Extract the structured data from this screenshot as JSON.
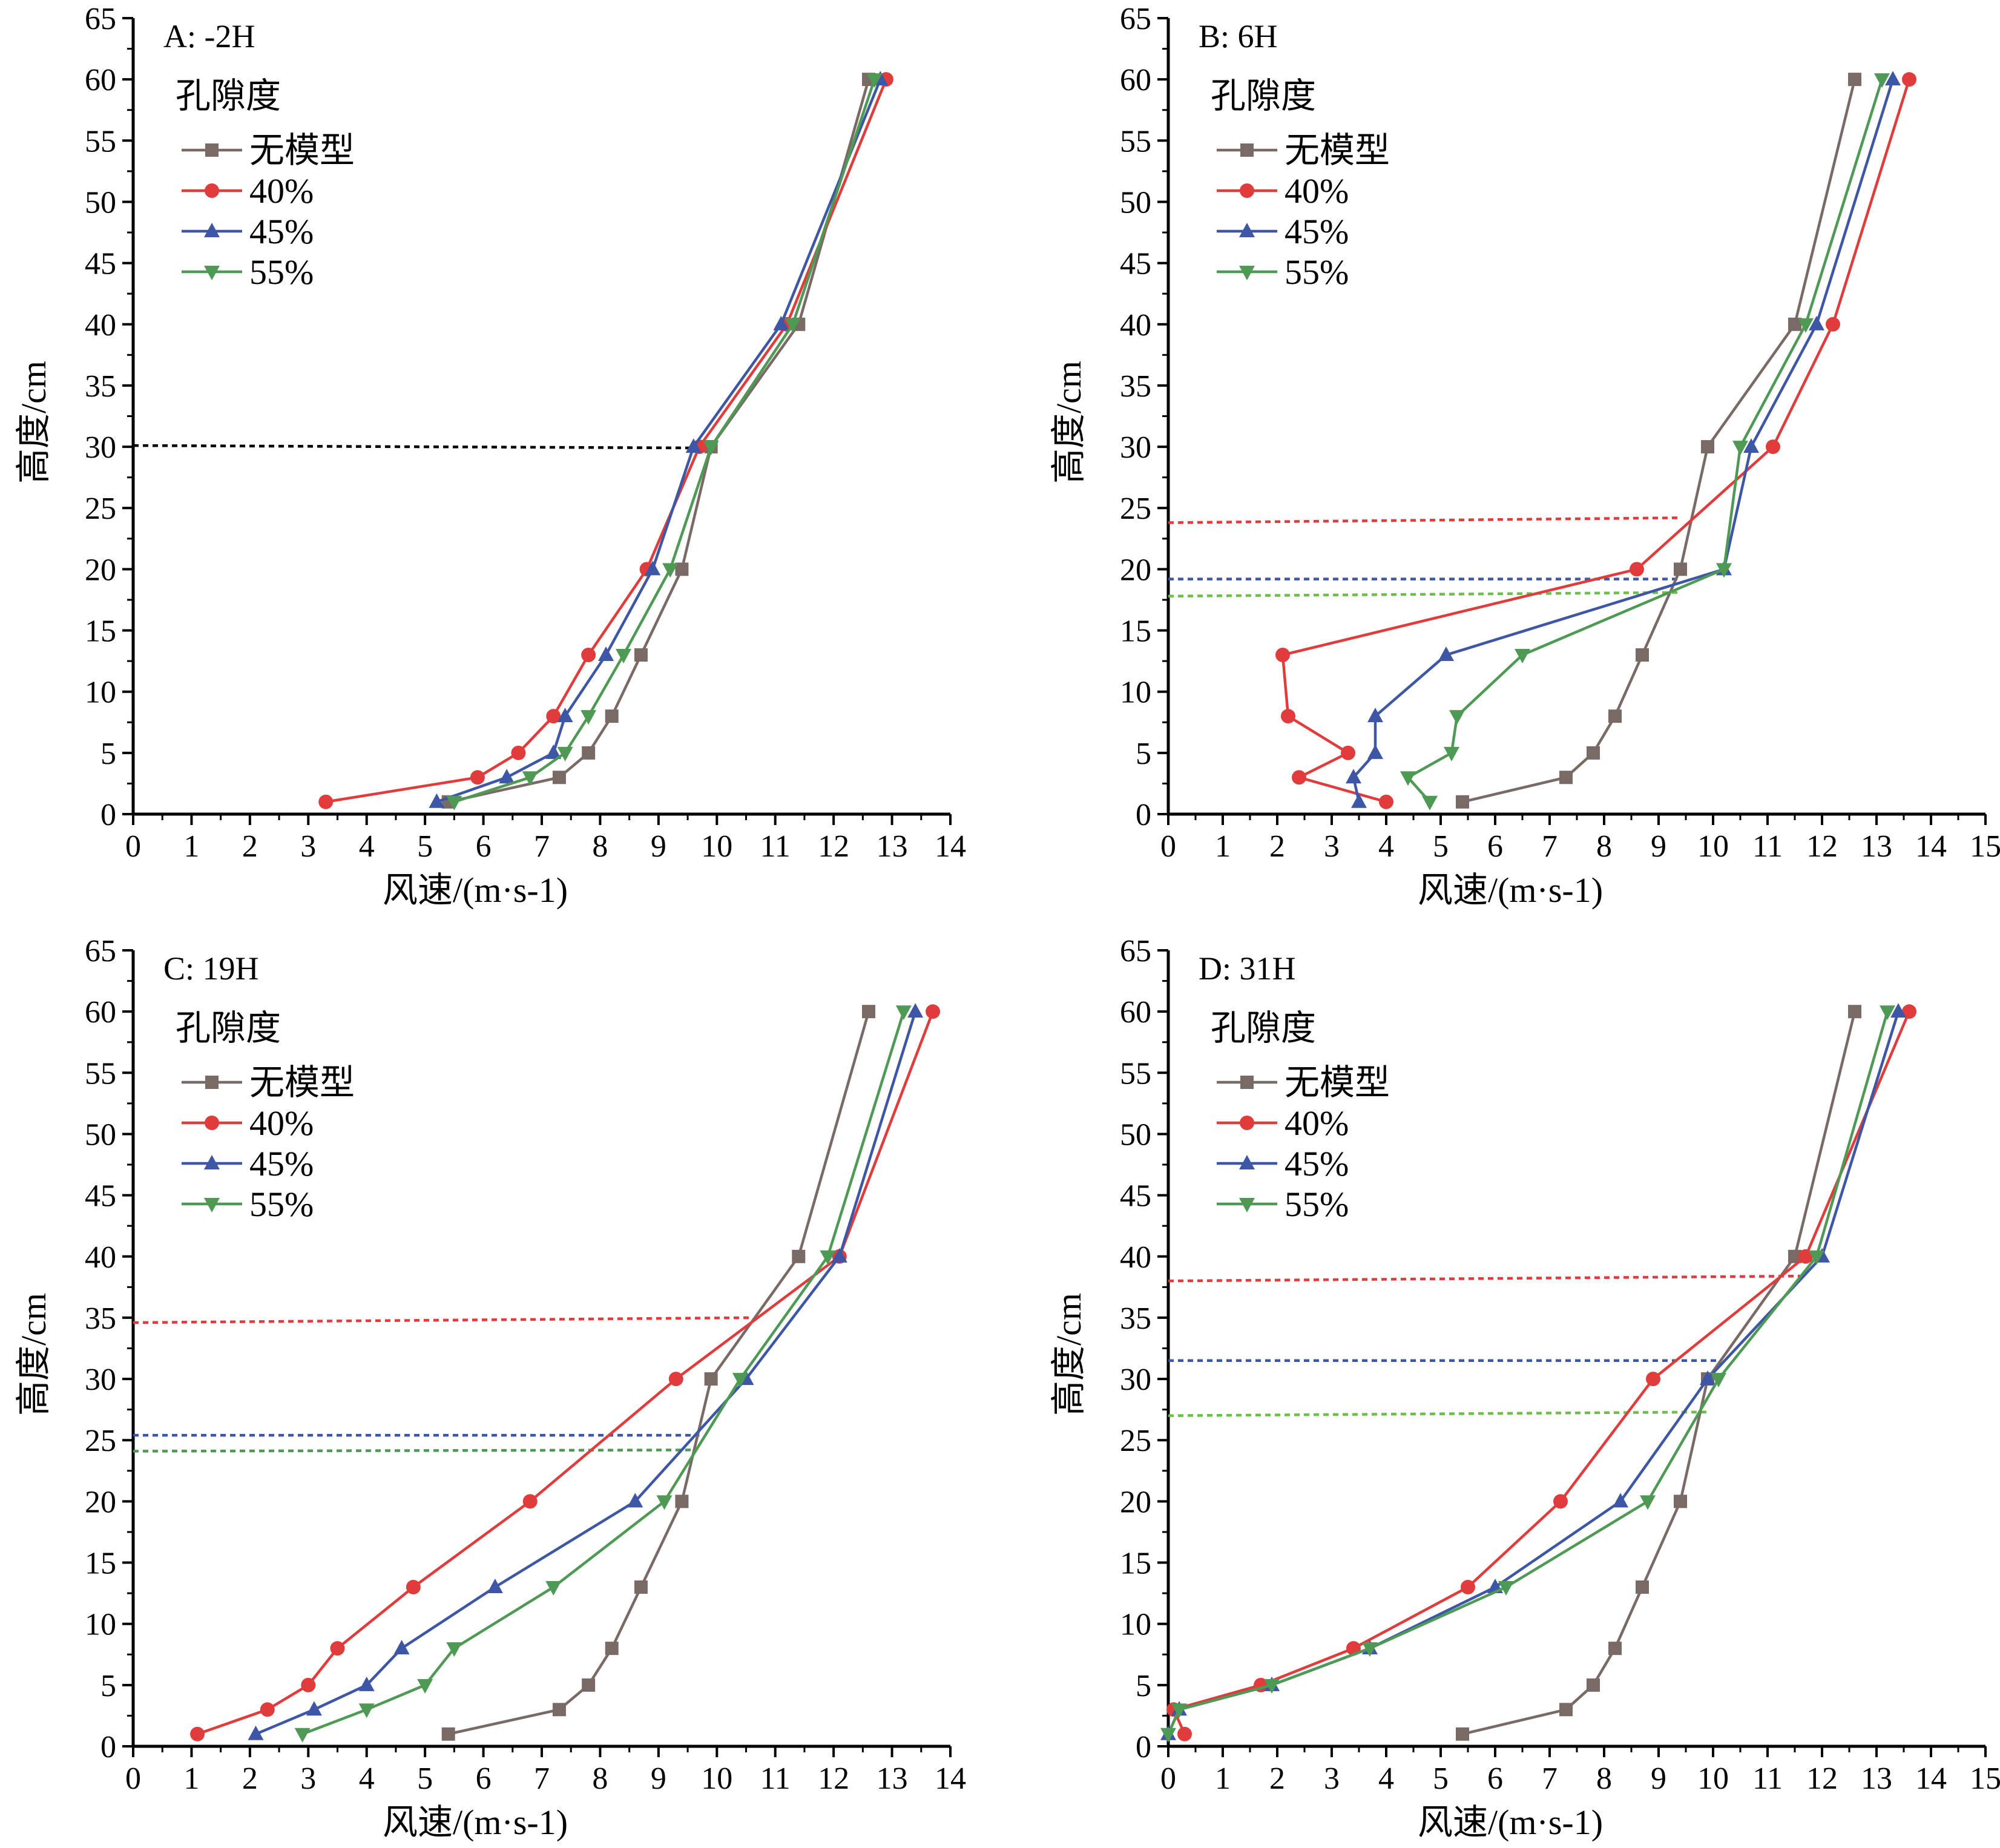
{
  "chart_data": [
    {
      "type": "line",
      "panel_label": "A: -2H",
      "xlabel": "风速/(m·s-1)",
      "ylabel": "高度/cm",
      "xlim": [
        0,
        14
      ],
      "ylim": [
        0,
        65
      ],
      "xticks": [
        0,
        1,
        2,
        3,
        4,
        5,
        6,
        7,
        8,
        9,
        10,
        11,
        12,
        13,
        14
      ],
      "yticks": [
        0,
        5,
        10,
        15,
        20,
        25,
        30,
        35,
        40,
        45,
        50,
        55,
        60,
        65
      ],
      "legend_title": "孔隙度",
      "legend_position": "top-left",
      "series": [
        {
          "name": "无模型",
          "color": "#7a6a66",
          "marker": "square",
          "points": [
            [
              5.4,
              1
            ],
            [
              7.3,
              3
            ],
            [
              7.8,
              5
            ],
            [
              8.2,
              8
            ],
            [
              8.7,
              13
            ],
            [
              9.4,
              20
            ],
            [
              9.9,
              30
            ],
            [
              11.4,
              40
            ],
            [
              12.6,
              60
            ]
          ]
        },
        {
          "name": "40%",
          "color": "#e03c3c",
          "marker": "circle",
          "points": [
            [
              3.3,
              1
            ],
            [
              5.9,
              3
            ],
            [
              6.6,
              5
            ],
            [
              7.2,
              8
            ],
            [
              7.8,
              13
            ],
            [
              8.8,
              20
            ],
            [
              9.7,
              30
            ],
            [
              11.2,
              40
            ],
            [
              12.9,
              60
            ]
          ]
        },
        {
          "name": "45%",
          "color": "#3d57a6",
          "marker": "triangle-up",
          "points": [
            [
              5.2,
              1
            ],
            [
              6.4,
              3
            ],
            [
              7.2,
              5
            ],
            [
              7.4,
              8
            ],
            [
              8.1,
              13
            ],
            [
              8.9,
              20
            ],
            [
              9.6,
              30
            ],
            [
              11.1,
              40
            ],
            [
              12.8,
              60
            ]
          ]
        },
        {
          "name": "55%",
          "color": "#4e9a54",
          "marker": "triangle-down",
          "points": [
            [
              5.5,
              1
            ],
            [
              6.8,
              3
            ],
            [
              7.4,
              5
            ],
            [
              7.8,
              8
            ],
            [
              8.4,
              13
            ],
            [
              9.2,
              20
            ],
            [
              9.9,
              30
            ],
            [
              11.3,
              40
            ],
            [
              12.7,
              60
            ]
          ]
        }
      ],
      "reference_lines": [
        {
          "color": "#000000",
          "x_from": 0,
          "x_to": 9.8,
          "y_from": 30.1,
          "y_to": 29.9
        }
      ]
    },
    {
      "type": "line",
      "panel_label": "B: 6H",
      "xlabel": "风速/(m·s-1)",
      "ylabel": "高度/cm",
      "xlim": [
        0,
        15
      ],
      "ylim": [
        0,
        65
      ],
      "xticks": [
        0,
        1,
        2,
        3,
        4,
        5,
        6,
        7,
        8,
        9,
        10,
        11,
        12,
        13,
        14,
        15
      ],
      "yticks": [
        0,
        5,
        10,
        15,
        20,
        25,
        30,
        35,
        40,
        45,
        50,
        55,
        60,
        65
      ],
      "legend_title": "孔隙度",
      "legend_position": "top-left",
      "series": [
        {
          "name": "无模型",
          "color": "#7a6a66",
          "marker": "square",
          "points": [
            [
              5.4,
              1
            ],
            [
              7.3,
              3
            ],
            [
              7.8,
              5
            ],
            [
              8.2,
              8
            ],
            [
              8.7,
              13
            ],
            [
              9.4,
              20
            ],
            [
              9.9,
              30
            ],
            [
              11.5,
              40
            ],
            [
              12.6,
              60
            ]
          ]
        },
        {
          "name": "40%",
          "color": "#e03c3c",
          "marker": "circle",
          "points": [
            [
              4.0,
              1
            ],
            [
              2.4,
              3
            ],
            [
              3.3,
              5
            ],
            [
              2.2,
              8
            ],
            [
              2.1,
              13
            ],
            [
              8.6,
              20
            ],
            [
              11.1,
              30
            ],
            [
              12.2,
              40
            ],
            [
              13.6,
              60
            ]
          ]
        },
        {
          "name": "45%",
          "color": "#3d57a6",
          "marker": "triangle-up",
          "points": [
            [
              3.5,
              1
            ],
            [
              3.4,
              3
            ],
            [
              3.8,
              5
            ],
            [
              3.8,
              8
            ],
            [
              5.1,
              13
            ],
            [
              10.2,
              20
            ],
            [
              10.7,
              30
            ],
            [
              11.9,
              40
            ],
            [
              13.3,
              60
            ]
          ]
        },
        {
          "name": "55%",
          "color": "#4e9a54",
          "marker": "triangle-down",
          "points": [
            [
              4.8,
              1
            ],
            [
              4.4,
              3
            ],
            [
              5.2,
              5
            ],
            [
              5.3,
              8
            ],
            [
              6.5,
              13
            ],
            [
              10.2,
              20
            ],
            [
              10.5,
              30
            ],
            [
              11.7,
              40
            ],
            [
              13.1,
              60
            ]
          ]
        }
      ],
      "reference_lines": [
        {
          "color": "#e03c3c",
          "x_from": 0,
          "x_to": 9.4,
          "y_from": 23.8,
          "y_to": 24.2
        },
        {
          "color": "#3d57a6",
          "x_from": 0,
          "x_to": 9.4,
          "y_from": 19.2,
          "y_to": 19.2
        },
        {
          "color": "#6cc04a",
          "x_from": 0,
          "x_to": 9.4,
          "y_from": 17.8,
          "y_to": 18.1
        }
      ]
    },
    {
      "type": "line",
      "panel_label": "C: 19H",
      "xlabel": "风速/(m·s-1)",
      "ylabel": "高度/cm",
      "xlim": [
        0,
        14
      ],
      "ylim": [
        0,
        65
      ],
      "xticks": [
        0,
        1,
        2,
        3,
        4,
        5,
        6,
        7,
        8,
        9,
        10,
        11,
        12,
        13,
        14
      ],
      "yticks": [
        0,
        5,
        10,
        15,
        20,
        25,
        30,
        35,
        40,
        45,
        50,
        55,
        60,
        65
      ],
      "legend_title": "孔隙度",
      "legend_position": "top-left",
      "series": [
        {
          "name": "无模型",
          "color": "#7a6a66",
          "marker": "square",
          "points": [
            [
              5.4,
              1
            ],
            [
              7.3,
              3
            ],
            [
              7.8,
              5
            ],
            [
              8.2,
              8
            ],
            [
              8.7,
              13
            ],
            [
              9.4,
              20
            ],
            [
              9.9,
              30
            ],
            [
              11.4,
              40
            ],
            [
              12.6,
              60
            ]
          ]
        },
        {
          "name": "40%",
          "color": "#e03c3c",
          "marker": "circle",
          "points": [
            [
              1.1,
              1
            ],
            [
              2.3,
              3
            ],
            [
              3.0,
              5
            ],
            [
              3.5,
              8
            ],
            [
              4.8,
              13
            ],
            [
              6.8,
              20
            ],
            [
              9.3,
              30
            ],
            [
              12.1,
              40
            ],
            [
              13.7,
              60
            ]
          ]
        },
        {
          "name": "45%",
          "color": "#3d57a6",
          "marker": "triangle-up",
          "points": [
            [
              2.1,
              1
            ],
            [
              3.1,
              3
            ],
            [
              4.0,
              5
            ],
            [
              4.6,
              8
            ],
            [
              6.2,
              13
            ],
            [
              8.6,
              20
            ],
            [
              10.5,
              30
            ],
            [
              12.1,
              40
            ],
            [
              13.4,
              60
            ]
          ]
        },
        {
          "name": "55%",
          "color": "#4e9a54",
          "marker": "triangle-down",
          "points": [
            [
              2.9,
              1
            ],
            [
              4.0,
              3
            ],
            [
              5.0,
              5
            ],
            [
              5.5,
              8
            ],
            [
              7.2,
              13
            ],
            [
              9.1,
              20
            ],
            [
              10.4,
              30
            ],
            [
              11.9,
              40
            ],
            [
              13.2,
              60
            ]
          ]
        }
      ],
      "reference_lines": [
        {
          "color": "#e03c3c",
          "x_from": 0,
          "x_to": 10.6,
          "y_from": 34.6,
          "y_to": 35.0
        },
        {
          "color": "#3d57a6",
          "x_from": 0,
          "x_to": 9.7,
          "y_from": 25.4,
          "y_to": 25.4
        },
        {
          "color": "#4e9a54",
          "x_from": 0,
          "x_to": 9.6,
          "y_from": 24.1,
          "y_to": 24.2
        }
      ]
    },
    {
      "type": "line",
      "panel_label": "D: 31H",
      "xlabel": "风速/(m·s-1)",
      "ylabel": "高度/cm",
      "xlim": [
        0,
        15
      ],
      "ylim": [
        0,
        65
      ],
      "xticks": [
        0,
        1,
        2,
        3,
        4,
        5,
        6,
        7,
        8,
        9,
        10,
        11,
        12,
        13,
        14,
        15
      ],
      "yticks": [
        0,
        5,
        10,
        15,
        20,
        25,
        30,
        35,
        40,
        45,
        50,
        55,
        60,
        65
      ],
      "legend_title": "孔隙度",
      "legend_position": "top-left",
      "series": [
        {
          "name": "无模型",
          "color": "#7a6a66",
          "marker": "square",
          "points": [
            [
              5.4,
              1
            ],
            [
              7.3,
              3
            ],
            [
              7.8,
              5
            ],
            [
              8.2,
              8
            ],
            [
              8.7,
              13
            ],
            [
              9.4,
              20
            ],
            [
              9.9,
              30
            ],
            [
              11.5,
              40
            ],
            [
              12.6,
              60
            ]
          ]
        },
        {
          "name": "40%",
          "color": "#e03c3c",
          "marker": "circle",
          "points": [
            [
              0.3,
              1
            ],
            [
              0.1,
              3
            ],
            [
              1.7,
              5
            ],
            [
              3.4,
              8
            ],
            [
              5.5,
              13
            ],
            [
              7.2,
              20
            ],
            [
              8.9,
              30
            ],
            [
              11.7,
              40
            ],
            [
              13.6,
              60
            ]
          ]
        },
        {
          "name": "45%",
          "color": "#3d57a6",
          "marker": "triangle-up",
          "points": [
            [
              0.0,
              1
            ],
            [
              0.2,
              3
            ],
            [
              1.9,
              5
            ],
            [
              3.7,
              8
            ],
            [
              6.0,
              13
            ],
            [
              8.3,
              20
            ],
            [
              9.9,
              30
            ],
            [
              12.0,
              40
            ],
            [
              13.4,
              60
            ]
          ]
        },
        {
          "name": "55%",
          "color": "#4e9a54",
          "marker": "triangle-down",
          "points": [
            [
              0.0,
              1
            ],
            [
              0.2,
              3
            ],
            [
              1.9,
              5
            ],
            [
              3.7,
              8
            ],
            [
              6.2,
              13
            ],
            [
              8.8,
              20
            ],
            [
              10.1,
              30
            ],
            [
              11.9,
              40
            ],
            [
              13.2,
              60
            ]
          ]
        }
      ],
      "reference_lines": [
        {
          "color": "#e03c3c",
          "x_from": 0,
          "x_to": 11.6,
          "y_from": 38.0,
          "y_to": 38.4
        },
        {
          "color": "#3d57a6",
          "x_from": 0,
          "x_to": 10.1,
          "y_from": 31.5,
          "y_to": 31.5
        },
        {
          "color": "#6cc04a",
          "x_from": 0,
          "x_to": 9.9,
          "y_from": 27.0,
          "y_to": 27.3
        }
      ]
    }
  ]
}
